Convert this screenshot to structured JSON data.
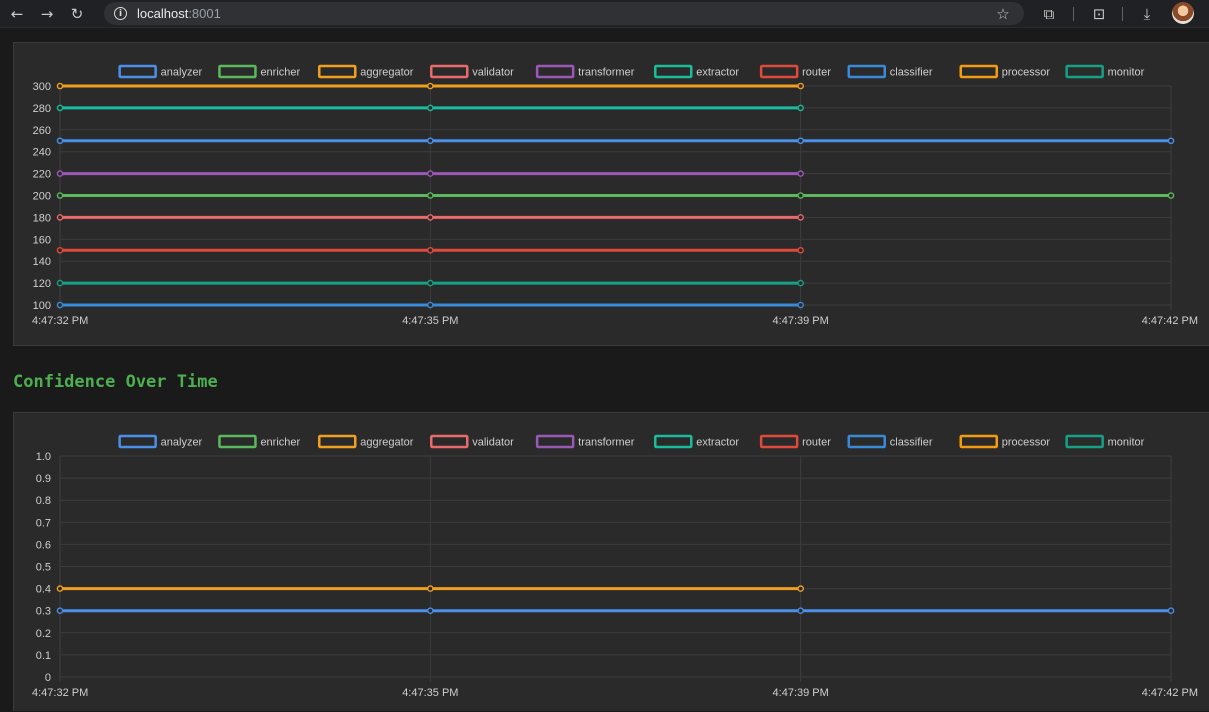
{
  "browser": {
    "back_icon": "←",
    "forward_icon": "→",
    "reload_icon": "↻",
    "url_host": "localhost",
    "url_port": ":8001",
    "bookmark_icon": "☆",
    "extensions_icon": "⧉",
    "search_tabs_icon": "⊡",
    "download_icon": "⤓"
  },
  "legend": [
    {
      "name": "analyzer",
      "color": "#4b8fe8"
    },
    {
      "name": "enricher",
      "color": "#5cb85c"
    },
    {
      "name": "aggregator",
      "color": "#f0a020"
    },
    {
      "name": "validator",
      "color": "#e86a6a"
    },
    {
      "name": "transformer",
      "color": "#9b59b6"
    },
    {
      "name": "extractor",
      "color": "#1abc9c"
    },
    {
      "name": "router",
      "color": "#e04a3a"
    },
    {
      "name": "classifier",
      "color": "#3a8ad8"
    },
    {
      "name": "processor",
      "color": "#f39c12"
    },
    {
      "name": "monitor",
      "color": "#16a085"
    }
  ],
  "section_title": "Confidence Over Time",
  "chart_data": [
    {
      "type": "line",
      "title": "",
      "x": [
        "4:47:32 PM",
        "4:47:35 PM",
        "4:47:39 PM",
        "4:47:42 PM"
      ],
      "ylim": [
        100,
        300
      ],
      "yticks": [
        100,
        120,
        140,
        160,
        180,
        200,
        220,
        240,
        260,
        280,
        300
      ],
      "grid": true,
      "legend_position": "top-center",
      "series": [
        {
          "name": "analyzer",
          "color": "#4b8fe8",
          "values": [
            250,
            250,
            250,
            250
          ]
        },
        {
          "name": "enricher",
          "color": "#5cb85c",
          "values": [
            200,
            200,
            200,
            200
          ]
        },
        {
          "name": "aggregator",
          "color": "#f0a020",
          "values": [
            300,
            300,
            300,
            null
          ]
        },
        {
          "name": "validator",
          "color": "#e86a6a",
          "values": [
            180,
            180,
            180,
            null
          ]
        },
        {
          "name": "transformer",
          "color": "#9b59b6",
          "values": [
            220,
            220,
            220,
            null
          ]
        },
        {
          "name": "extractor",
          "color": "#1abc9c",
          "values": [
            280,
            280,
            280,
            null
          ]
        },
        {
          "name": "router",
          "color": "#e04a3a",
          "values": [
            150,
            150,
            150,
            null
          ]
        },
        {
          "name": "classifier",
          "color": "#3a8ad8",
          "values": [
            100,
            100,
            100,
            null
          ]
        },
        {
          "name": "processor",
          "color": "#f39c12",
          "values": [
            null,
            null,
            null,
            null
          ]
        },
        {
          "name": "monitor",
          "color": "#16a085",
          "values": [
            120,
            120,
            120,
            null
          ]
        }
      ]
    },
    {
      "type": "line",
      "title": "",
      "x": [
        "4:47:32 PM",
        "4:47:35 PM",
        "4:47:39 PM",
        "4:47:42 PM"
      ],
      "ylim": [
        0,
        1.0
      ],
      "yticks": [
        "0",
        "0.1",
        "0.2",
        "0.3",
        "0.4",
        "0.5",
        "0.6",
        "0.7",
        "0.8",
        "0.9",
        "1.0"
      ],
      "grid": true,
      "legend_position": "top-center",
      "series": [
        {
          "name": "analyzer",
          "color": "#4b8fe8",
          "values": [
            0.3,
            0.3,
            0.3,
            0.3
          ]
        },
        {
          "name": "aggregator",
          "color": "#f0a020",
          "values": [
            0.4,
            0.4,
            0.4,
            null
          ]
        }
      ]
    }
  ]
}
